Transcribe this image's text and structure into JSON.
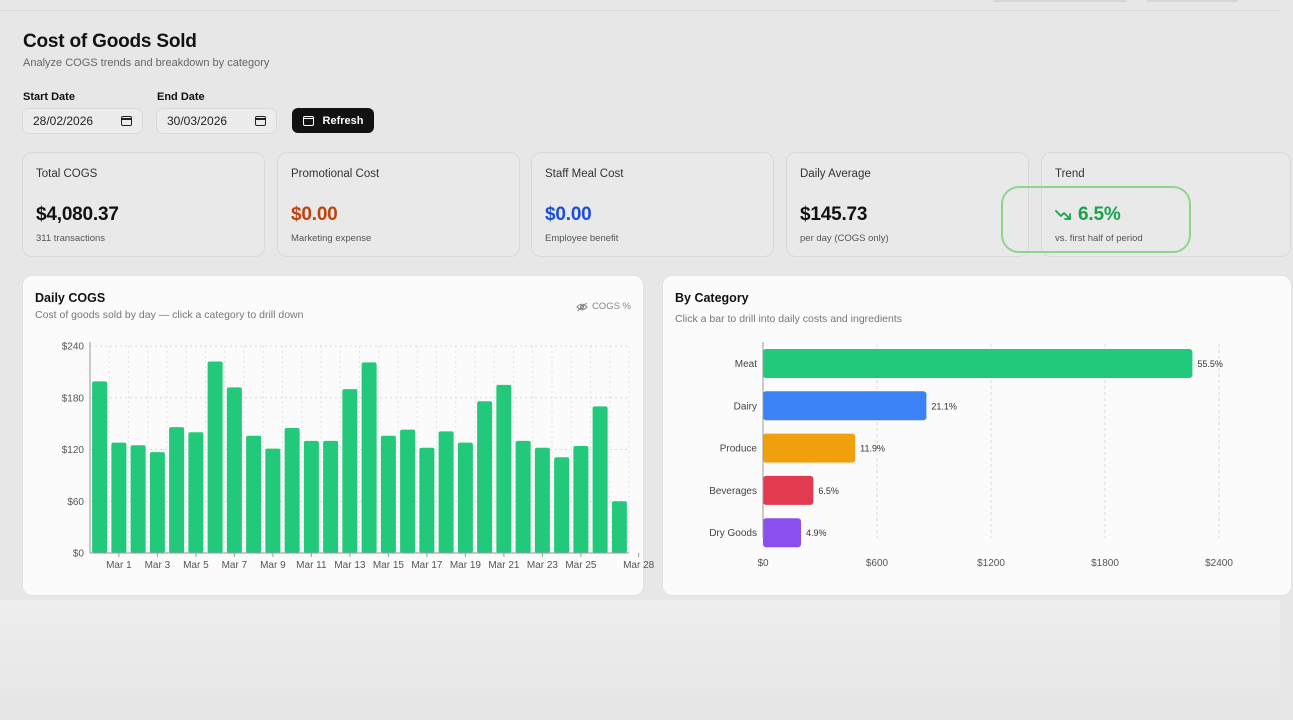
{
  "header": {
    "title": "Cost of Goods Sold",
    "subtitle": "Analyze COGS trends and breakdown by category"
  },
  "filters": {
    "start_label": "Start Date",
    "start_value": "28/02/2026",
    "end_label": "End Date",
    "end_value": "30/03/2026",
    "refresh_label": "Refresh"
  },
  "kpis": [
    {
      "label": "Total COGS",
      "value": "$4,080.37",
      "note": "311 transactions",
      "color": "#111111"
    },
    {
      "label": "Promotional Cost",
      "value": "$0.00",
      "note": "Marketing expense",
      "color": "#c2410c"
    },
    {
      "label": "Staff Meal Cost",
      "value": "$0.00",
      "note": "Employee benefit",
      "color": "#1d4ed8"
    },
    {
      "label": "Daily Average",
      "value": "$145.73",
      "note": "per day (COGS only)",
      "color": "#111111"
    },
    {
      "label": "Trend",
      "value": "6.5%",
      "note": "vs. first half of period",
      "color": "#16a34a",
      "icon": "trending-down-icon"
    }
  ],
  "daily_panel": {
    "title": "Daily COGS",
    "subtitle": "Cost of goods sold by day — click a category to drill down",
    "toggle_label": "COGS %",
    "toggle_icon": "eye-off-icon"
  },
  "category_panel": {
    "title": "By Category",
    "subtitle": "Click a bar to drill into daily costs and ingredients"
  },
  "chart_data": [
    {
      "type": "bar",
      "orientation": "vertical",
      "ylim": [
        0,
        240
      ],
      "yticks": [
        "$0",
        "$60",
        "$120",
        "$180",
        "$240"
      ],
      "ytick_values": [
        0,
        60,
        120,
        180,
        240
      ],
      "xtick_labels": [
        "Mar 1",
        "Mar 3",
        "Mar 5",
        "Mar 7",
        "Mar 9",
        "Mar 11",
        "Mar 13",
        "Mar 15",
        "Mar 17",
        "Mar 19",
        "Mar 21",
        "Mar 23",
        "Mar 25",
        "Mar 28"
      ],
      "values": [
        199,
        128,
        125,
        117,
        146,
        140,
        222,
        192,
        136,
        121,
        145,
        130,
        130,
        190,
        221,
        136,
        143,
        122,
        141,
        128,
        176,
        195,
        130,
        122,
        111,
        124,
        170,
        60
      ],
      "color": "#22c97a",
      "grid": true
    },
    {
      "type": "bar",
      "orientation": "horizontal",
      "categories": [
        "Meat",
        "Dairy",
        "Produce",
        "Beverages",
        "Dry Goods"
      ],
      "values": [
        2260,
        860,
        485,
        265,
        200
      ],
      "labels": [
        "55.5%",
        "21.1%",
        "11.9%",
        "6.5%",
        "4.9%"
      ],
      "colors": [
        "#22c97a",
        "#3b82f6",
        "#f0a00c",
        "#e23a4e",
        "#8b4ff0"
      ],
      "xlim": [
        0,
        2400
      ],
      "xticks": [
        "$0",
        "$600",
        "$1200",
        "$1800",
        "$2400"
      ],
      "xtick_values": [
        0,
        600,
        1200,
        1800,
        2400
      ],
      "grid": true
    }
  ]
}
